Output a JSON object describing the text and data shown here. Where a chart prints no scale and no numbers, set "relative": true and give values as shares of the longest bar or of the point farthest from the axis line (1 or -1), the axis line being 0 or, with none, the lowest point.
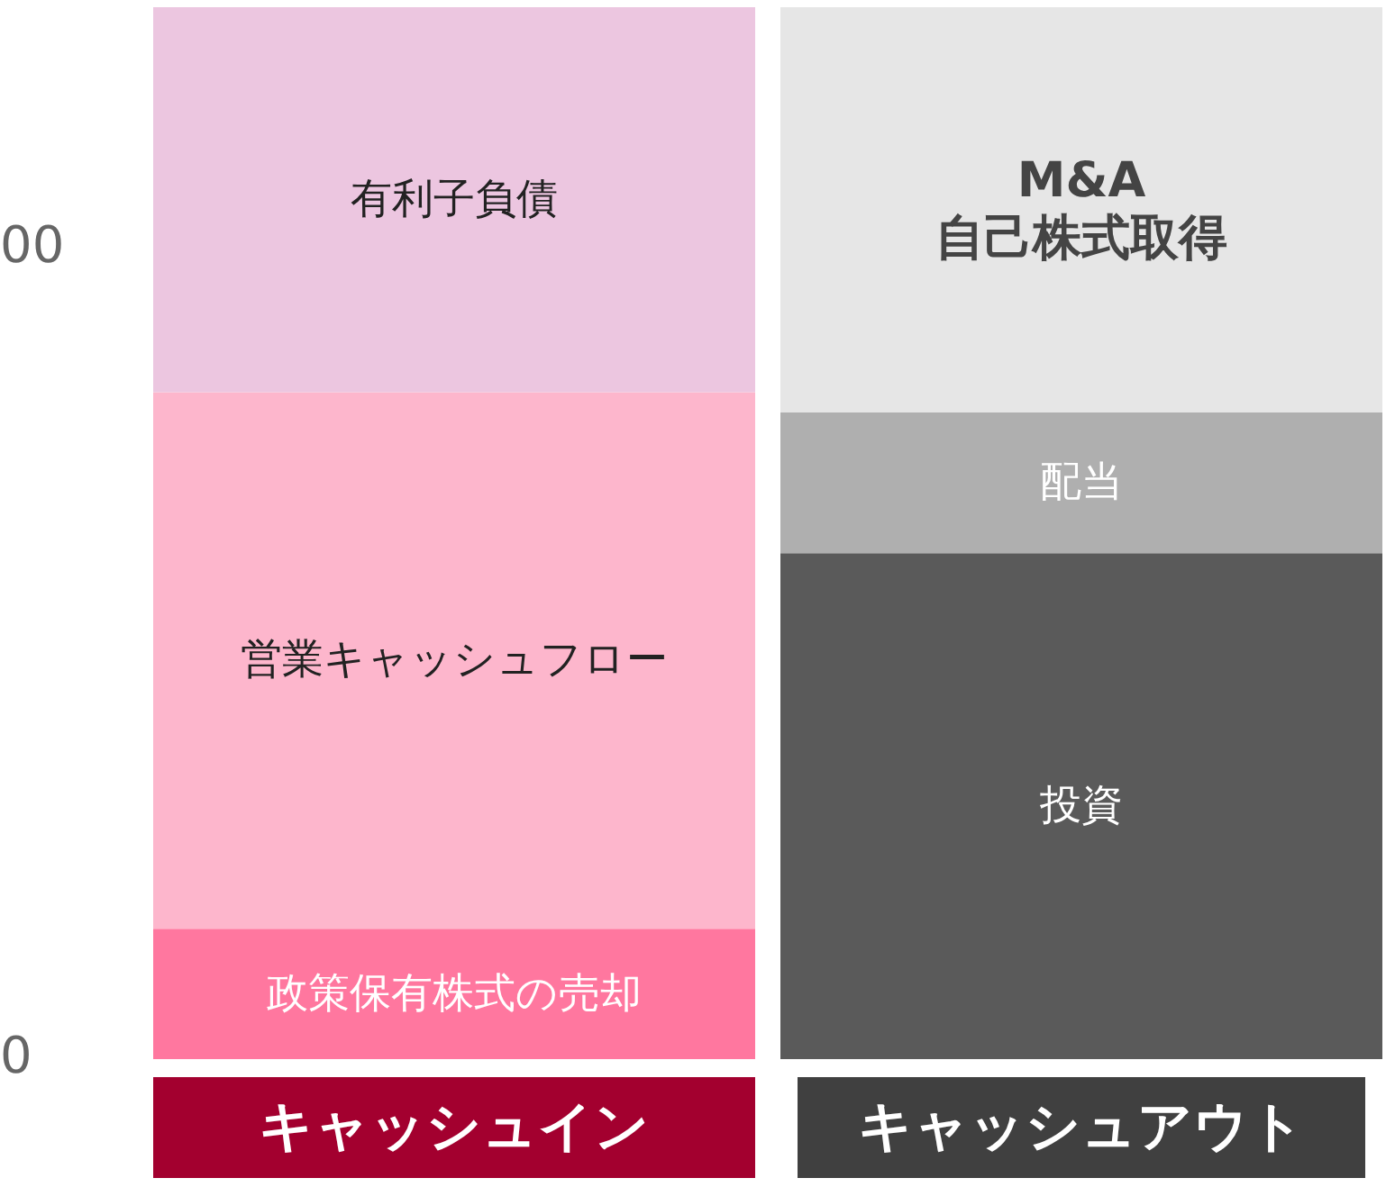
{
  "chart_data": {
    "type": "bar",
    "stacked": true,
    "relative": true,
    "legend": false,
    "grid": false,
    "categories": [
      "キャッシュイン",
      "キャッシュアウト"
    ],
    "series": [
      {
        "name": "政策保有株式の売却",
        "color": "#ff779f",
        "values": [
          0.124,
          null
        ]
      },
      {
        "name": "営業キャッシュフロー",
        "color": "#fdb6cc",
        "values": [
          0.51,
          null
        ]
      },
      {
        "name": "有利子負債",
        "color": "#ecc6e0",
        "values": [
          0.366,
          null
        ]
      },
      {
        "name": "投資",
        "color": "#5a5a5a",
        "values": [
          null,
          0.481
        ]
      },
      {
        "name": "配当",
        "color": "#afafaf",
        "values": [
          null,
          0.134
        ]
      },
      {
        "name": "M&A\n自己株式取得",
        "color": "#e6e6e6",
        "values": [
          null,
          0.385
        ]
      }
    ],
    "annotations": [
      "0",
      "00"
    ]
  }
}
